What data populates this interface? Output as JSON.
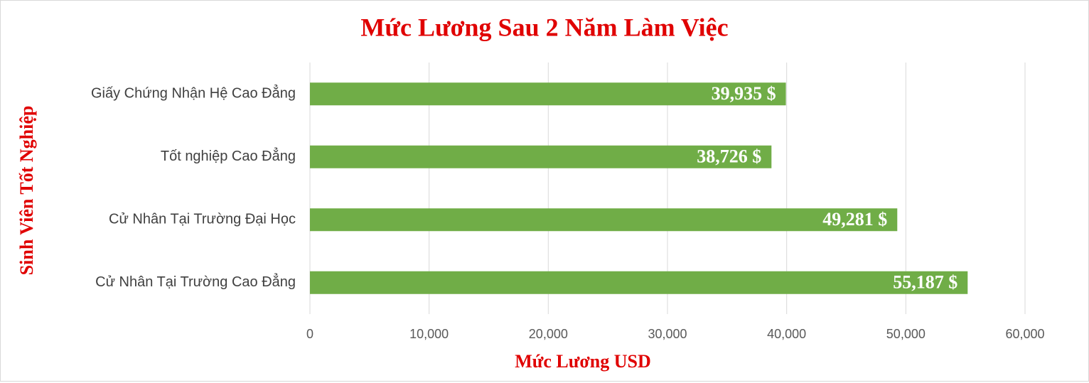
{
  "chart_data": {
    "type": "barh",
    "title": "Mức Lương Sau 2 Năm Làm Việc",
    "xlabel": "Mức Lương USD",
    "ylabel": "Sinh Viên Tốt Nghiệp",
    "categories": [
      "Giấy Chứng Nhận Hệ Cao Đẳng",
      "Tốt nghiệp Cao Đẳng",
      "Cử Nhân Tại Trường Đại Học",
      "Cử Nhân Tại Trường Cao Đẳng"
    ],
    "values": [
      39935,
      38726,
      49281,
      55187
    ],
    "value_labels": [
      "39,935 $",
      "38,726 $",
      "49,281 $",
      "55,187 $"
    ],
    "color": "#70ad47",
    "xlim": [
      0,
      60000
    ],
    "xticks": [
      0,
      {
        "value": 10000,
        "label": "10,000"
      },
      {
        "value": 20000,
        "label": "20,000"
      },
      {
        "value": 30000,
        "label": "30,000"
      },
      {
        "value": 40000,
        "label": "40,000"
      },
      {
        "value": 50000,
        "label": "50,000"
      },
      {
        "value": 60000,
        "label": "60,000"
      }
    ],
    "grid": true
  }
}
